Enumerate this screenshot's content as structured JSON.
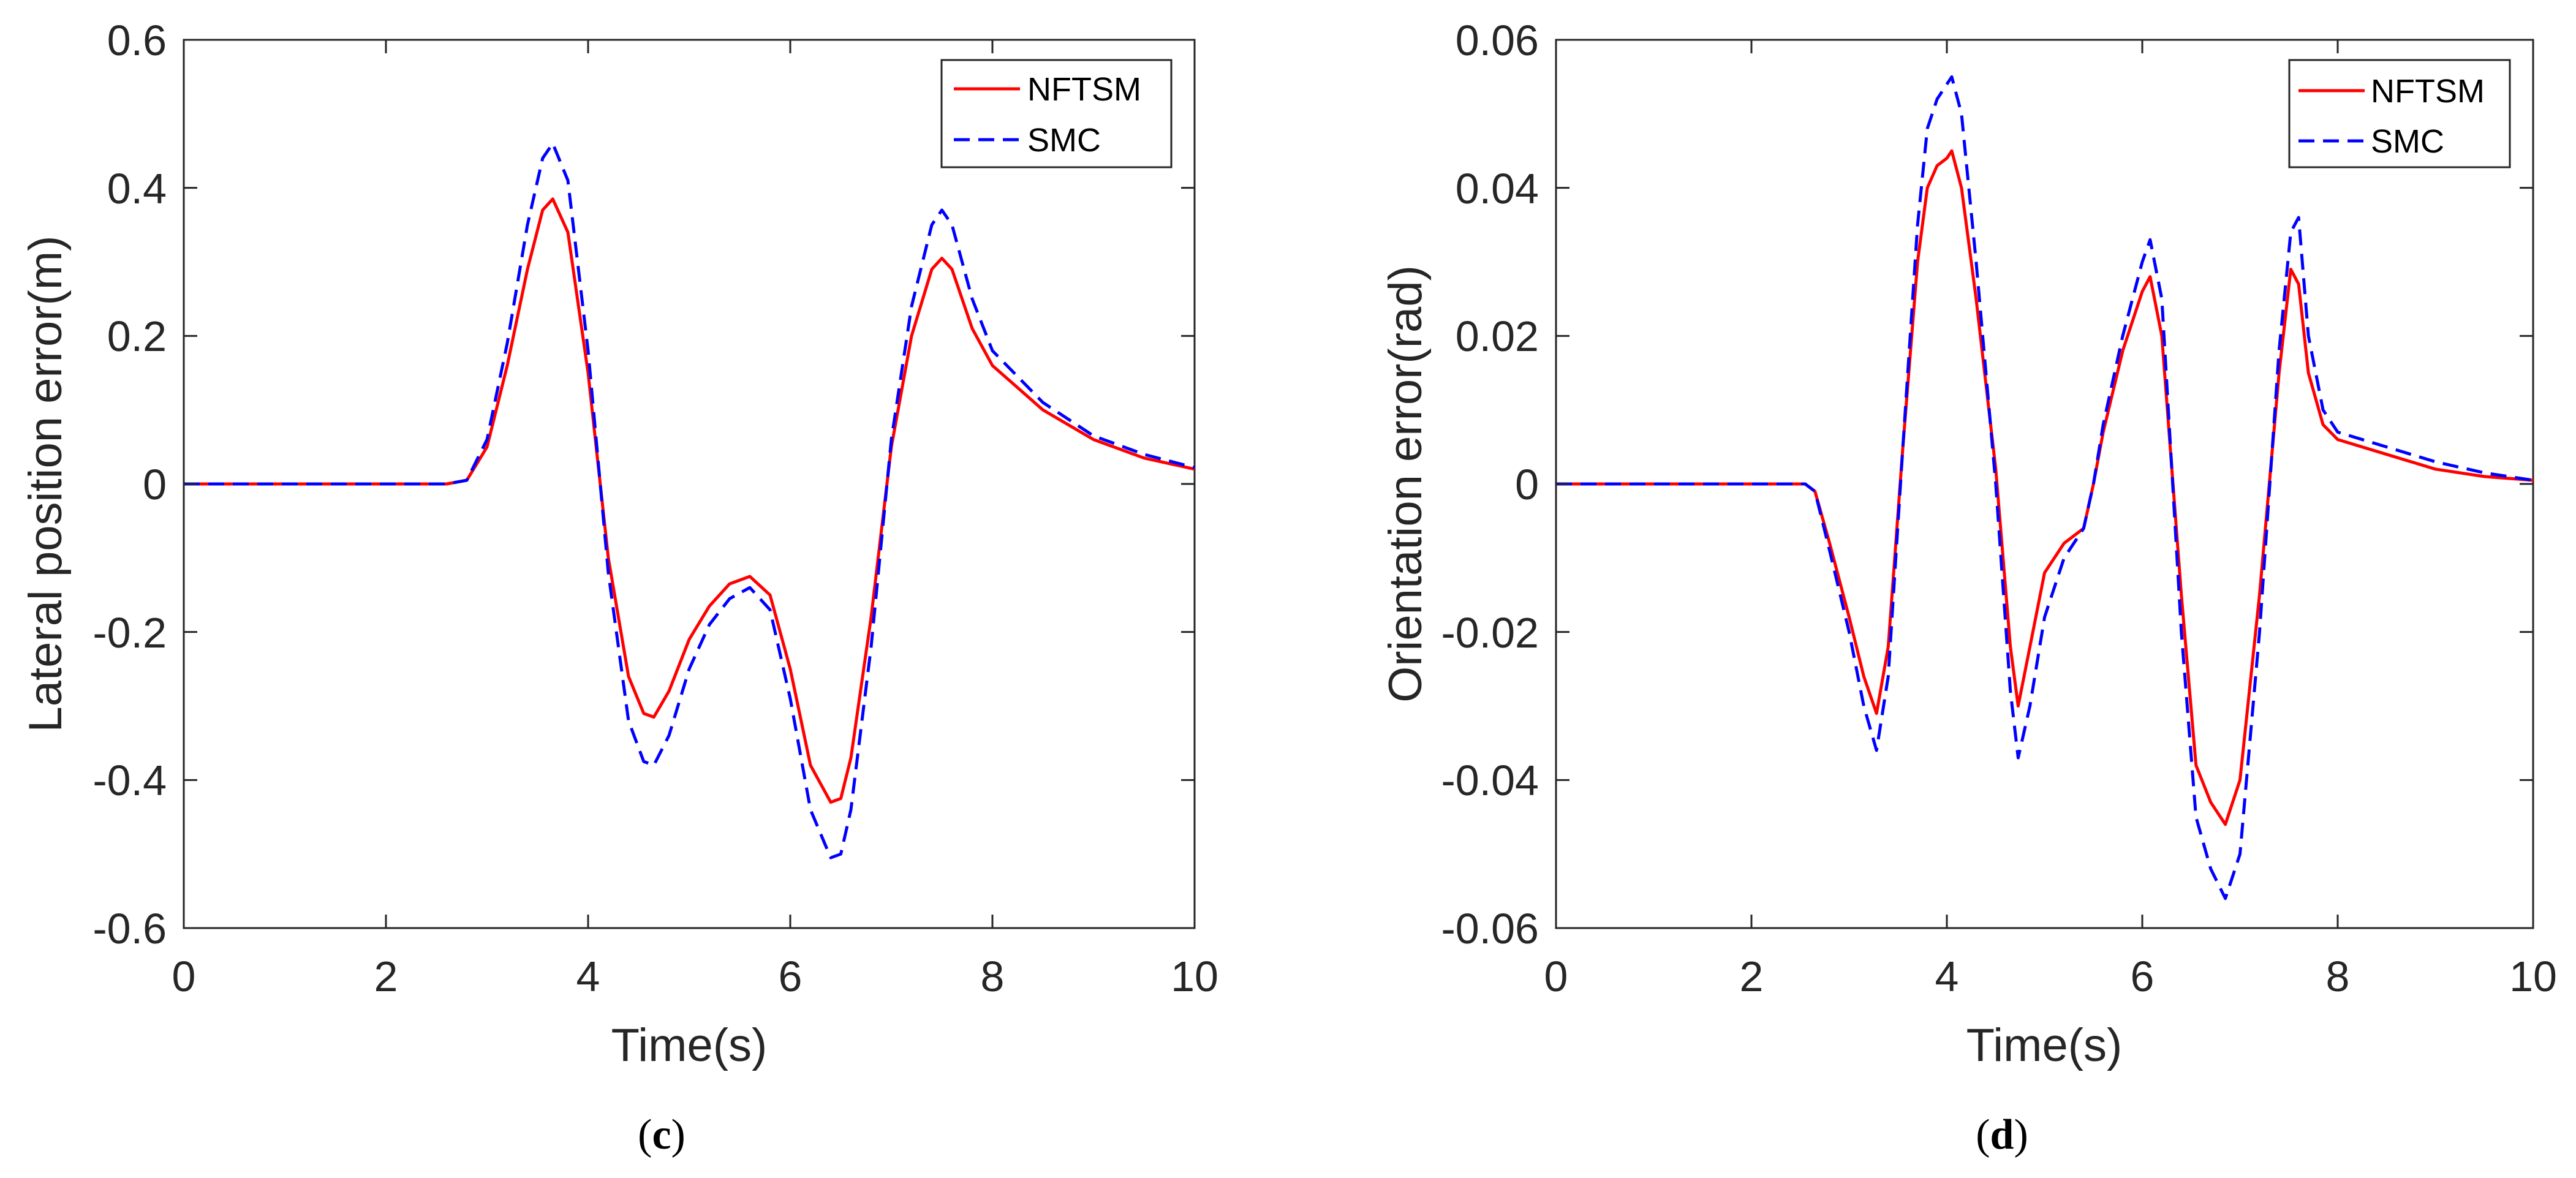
{
  "chart_data": [
    {
      "type": "line",
      "panel_label": {
        "open": "(",
        "letter": "c",
        "close": ")"
      },
      "xlabel": "Time(s)",
      "ylabel": "Lateral position error(m)",
      "xlim": [
        0,
        10
      ],
      "ylim": [
        -0.6,
        0.6
      ],
      "xticks": [
        0,
        2,
        4,
        6,
        8,
        10
      ],
      "xtick_labels": [
        "0",
        "2",
        "4",
        "6",
        "8",
        "10"
      ],
      "yticks": [
        -0.6,
        -0.4,
        -0.2,
        0,
        0.2,
        0.4,
        0.6
      ],
      "ytick_labels": [
        "-0.6",
        "-0.4",
        "-0.2",
        "0",
        "0.2",
        "0.4",
        "0.6"
      ],
      "grid": false,
      "legend_position": "top-right",
      "series": [
        {
          "name": "NFTSM",
          "color": "#ff0000",
          "dash": "solid",
          "x": [
            0,
            2.6,
            2.8,
            3.0,
            3.2,
            3.4,
            3.55,
            3.65,
            3.8,
            4.0,
            4.2,
            4.4,
            4.55,
            4.65,
            4.8,
            5.0,
            5.2,
            5.4,
            5.6,
            5.8,
            6.0,
            6.2,
            6.4,
            6.5,
            6.6,
            6.8,
            7.0,
            7.2,
            7.4,
            7.5,
            7.6,
            7.8,
            8.0,
            8.5,
            9.0,
            9.5,
            10
          ],
          "y": [
            0,
            0,
            0.005,
            0.05,
            0.16,
            0.29,
            0.37,
            0.385,
            0.34,
            0.15,
            -0.1,
            -0.26,
            -0.31,
            -0.315,
            -0.28,
            -0.21,
            -0.165,
            -0.135,
            -0.125,
            -0.15,
            -0.25,
            -0.38,
            -0.43,
            -0.425,
            -0.37,
            -0.18,
            0.05,
            0.2,
            0.29,
            0.305,
            0.29,
            0.21,
            0.16,
            0.1,
            0.06,
            0.035,
            0.02
          ]
        },
        {
          "name": "SMC",
          "color": "#0000ff",
          "dash": "dashed",
          "x": [
            0,
            2.6,
            2.8,
            3.0,
            3.2,
            3.4,
            3.55,
            3.65,
            3.8,
            4.0,
            4.2,
            4.4,
            4.55,
            4.65,
            4.8,
            5.0,
            5.2,
            5.4,
            5.6,
            5.8,
            6.0,
            6.2,
            6.4,
            6.5,
            6.6,
            6.8,
            7.0,
            7.2,
            7.4,
            7.5,
            7.6,
            7.8,
            8.0,
            8.5,
            9.0,
            9.5,
            10
          ],
          "y": [
            0,
            0,
            0.005,
            0.06,
            0.19,
            0.35,
            0.44,
            0.46,
            0.41,
            0.18,
            -0.12,
            -0.32,
            -0.375,
            -0.38,
            -0.34,
            -0.25,
            -0.19,
            -0.155,
            -0.14,
            -0.17,
            -0.29,
            -0.44,
            -0.505,
            -0.5,
            -0.44,
            -0.22,
            0.06,
            0.24,
            0.35,
            0.37,
            0.35,
            0.25,
            0.18,
            0.11,
            0.065,
            0.04,
            0.022
          ]
        }
      ]
    },
    {
      "type": "line",
      "panel_label": {
        "open": "(",
        "letter": "d",
        "close": ")"
      },
      "xlabel": "Time(s)",
      "ylabel": "Orientation error(rad)",
      "xlim": [
        0,
        10
      ],
      "ylim": [
        -0.06,
        0.06
      ],
      "xticks": [
        0,
        2,
        4,
        6,
        8,
        10
      ],
      "xtick_labels": [
        "0",
        "2",
        "4",
        "6",
        "8",
        "10"
      ],
      "yticks": [
        -0.06,
        -0.04,
        -0.02,
        0,
        0.02,
        0.04,
        0.06
      ],
      "ytick_labels": [
        "-0.06",
        "-0.04",
        "-0.02",
        "0",
        "0.02",
        "0.04",
        "0.06"
      ],
      "grid": false,
      "legend_position": "top-right",
      "series": [
        {
          "name": "NFTSM",
          "color": "#ff0000",
          "dash": "solid",
          "x": [
            0,
            2.55,
            2.65,
            2.8,
            3.0,
            3.15,
            3.28,
            3.4,
            3.55,
            3.7,
            3.8,
            3.9,
            4.0,
            4.05,
            4.15,
            4.3,
            4.5,
            4.65,
            4.73,
            4.85,
            5.0,
            5.2,
            5.4,
            5.5,
            5.6,
            5.8,
            6.0,
            6.08,
            6.2,
            6.4,
            6.55,
            6.7,
            6.85,
            7.0,
            7.2,
            7.4,
            7.52,
            7.6,
            7.7,
            7.85,
            8.0,
            8.5,
            9.0,
            9.5,
            10
          ],
          "y": [
            0,
            0,
            -0.001,
            -0.008,
            -0.018,
            -0.026,
            -0.031,
            -0.022,
            0.005,
            0.03,
            0.04,
            0.043,
            0.044,
            0.045,
            0.04,
            0.025,
            0.002,
            -0.022,
            -0.03,
            -0.022,
            -0.012,
            -0.008,
            -0.006,
            0.0,
            0.007,
            0.018,
            0.026,
            0.028,
            0.02,
            -0.015,
            -0.038,
            -0.043,
            -0.046,
            -0.04,
            -0.015,
            0.015,
            0.029,
            0.027,
            0.015,
            0.008,
            0.006,
            0.004,
            0.002,
            0.001,
            0.0005
          ]
        },
        {
          "name": "SMC",
          "color": "#0000ff",
          "dash": "dashed",
          "x": [
            0,
            2.55,
            2.65,
            2.8,
            3.0,
            3.15,
            3.28,
            3.4,
            3.55,
            3.7,
            3.8,
            3.9,
            4.0,
            4.05,
            4.15,
            4.3,
            4.5,
            4.65,
            4.73,
            4.85,
            5.0,
            5.2,
            5.4,
            5.5,
            5.6,
            5.8,
            6.0,
            6.08,
            6.2,
            6.4,
            6.55,
            6.7,
            6.85,
            7.0,
            7.2,
            7.4,
            7.52,
            7.6,
            7.7,
            7.85,
            8.0,
            8.5,
            9.0,
            9.5,
            10
          ],
          "y": [
            0,
            0,
            -0.001,
            -0.009,
            -0.02,
            -0.03,
            -0.036,
            -0.026,
            0.005,
            0.035,
            0.048,
            0.052,
            0.054,
            0.055,
            0.05,
            0.03,
            0.0,
            -0.028,
            -0.037,
            -0.03,
            -0.018,
            -0.01,
            -0.006,
            0.0,
            0.008,
            0.02,
            0.03,
            0.033,
            0.025,
            -0.02,
            -0.045,
            -0.052,
            -0.056,
            -0.05,
            -0.02,
            0.018,
            0.034,
            0.036,
            0.02,
            0.01,
            0.007,
            0.005,
            0.003,
            0.0015,
            0.0005
          ]
        }
      ]
    }
  ]
}
